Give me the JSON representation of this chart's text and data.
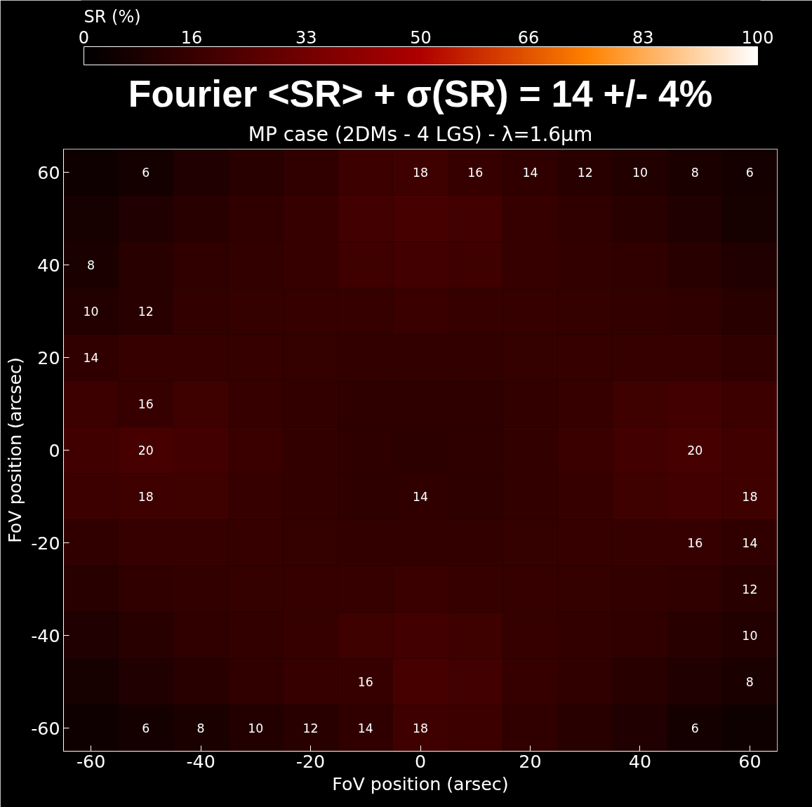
{
  "chart_data": {
    "type": "heatmap",
    "title": "Fourier <SR> + σ(SR) = 14 +/- 4%",
    "subtitle": "MP case (2DMs - 4 LGS) - λ=1.6μm",
    "xlabel": "FoV position (arsec)",
    "ylabel": "FoV position (arcsec)",
    "clabel": "SR (%)",
    "categories": [
      "-60",
      null,
      "-40",
      null,
      "-20",
      null,
      "0",
      null,
      "20",
      null,
      "40",
      null,
      "60"
    ],
    "y_categories": [
      "60",
      null,
      "40",
      null,
      "20",
      null,
      "0",
      null,
      "-20",
      null,
      "-40",
      null,
      "-60"
    ],
    "cells": [
      [
        4.5,
        6,
        9,
        11.5,
        14,
        17.5,
        18,
        16,
        14,
        12,
        10,
        8,
        6
      ],
      [
        6.5,
        9,
        11.5,
        14,
        16,
        19,
        20.5,
        19,
        16,
        14,
        11.5,
        9,
        6.5
      ],
      [
        8,
        11.5,
        14,
        14.5,
        16,
        18,
        19.5,
        18,
        16,
        14.5,
        14,
        11.5,
        9
      ],
      [
        10,
        12,
        14.5,
        15,
        15.5,
        16,
        16.5,
        16,
        15.5,
        15,
        14.5,
        14,
        11.5
      ],
      [
        14,
        16,
        16,
        15.5,
        15,
        14.5,
        14.5,
        14.5,
        15,
        15.5,
        16,
        16,
        14
      ],
      [
        17.5,
        16,
        18,
        16,
        14.5,
        13.5,
        13.5,
        13.5,
        14.5,
        16,
        18,
        19,
        17.5
      ],
      [
        18.5,
        20,
        19.5,
        16.5,
        14.5,
        13.5,
        13,
        13.5,
        14.5,
        16.5,
        19.5,
        20,
        18.5
      ],
      [
        17.5,
        18,
        18,
        16,
        14.5,
        13.5,
        14,
        13.5,
        14.5,
        16,
        18,
        19,
        18
      ],
      [
        14,
        16,
        16,
        15.5,
        15,
        14.5,
        14.5,
        14.5,
        15,
        15.5,
        16,
        16,
        14
      ],
      [
        11.5,
        14,
        14.5,
        15,
        15.5,
        16,
        16.5,
        16,
        15.5,
        15,
        14.5,
        14,
        12
      ],
      [
        9,
        11.5,
        14,
        14.5,
        16,
        18,
        19.5,
        18,
        16,
        14.5,
        14,
        11.5,
        10
      ],
      [
        6.5,
        9,
        11.5,
        14,
        16,
        16,
        20.5,
        19,
        16,
        14,
        11.5,
        9,
        8
      ],
      [
        4.5,
        6,
        8,
        10,
        12,
        14,
        18,
        17.5,
        14,
        11.5,
        9,
        6,
        4.5
      ]
    ],
    "cell_labels": [
      [
        null,
        "6",
        null,
        null,
        null,
        null,
        "18",
        "16",
        "14",
        "12",
        "10",
        "8",
        "6"
      ],
      [
        null,
        null,
        null,
        null,
        null,
        null,
        null,
        null,
        null,
        null,
        null,
        null,
        null
      ],
      [
        "8",
        null,
        null,
        null,
        null,
        null,
        null,
        null,
        null,
        null,
        null,
        null,
        null
      ],
      [
        "10",
        "12",
        null,
        null,
        null,
        null,
        null,
        null,
        null,
        null,
        null,
        null,
        null
      ],
      [
        "14",
        null,
        null,
        null,
        null,
        null,
        null,
        null,
        null,
        null,
        null,
        null,
        null
      ],
      [
        null,
        "16",
        null,
        null,
        null,
        null,
        null,
        null,
        null,
        null,
        null,
        null,
        null
      ],
      [
        null,
        "20",
        null,
        null,
        null,
        null,
        null,
        null,
        null,
        null,
        null,
        "20",
        null
      ],
      [
        null,
        "18",
        null,
        null,
        null,
        null,
        "14",
        null,
        null,
        null,
        null,
        null,
        "18"
      ],
      [
        null,
        null,
        null,
        null,
        null,
        null,
        null,
        null,
        null,
        null,
        null,
        "16",
        "14"
      ],
      [
        null,
        null,
        null,
        null,
        null,
        null,
        null,
        null,
        null,
        null,
        null,
        null,
        "12"
      ],
      [
        null,
        null,
        null,
        null,
        null,
        null,
        null,
        null,
        null,
        null,
        null,
        null,
        "10"
      ],
      [
        null,
        null,
        null,
        null,
        null,
        "16",
        null,
        null,
        null,
        null,
        null,
        null,
        "8"
      ],
      [
        null,
        "6",
        "8",
        "10",
        "12",
        "14",
        "18",
        null,
        null,
        null,
        null,
        "6",
        null
      ]
    ],
    "clim": [
      0,
      100
    ],
    "cticks": [
      0,
      16,
      33,
      50,
      66,
      83,
      100
    ],
    "grid": false
  }
}
